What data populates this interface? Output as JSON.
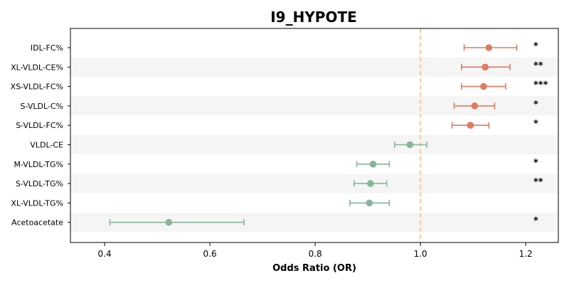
{
  "chart_data": {
    "type": "forest",
    "title": "I9_HYPOTE",
    "xlabel": "Odds Ratio (OR)",
    "ylabel": "",
    "xlim": [
      0.335,
      1.262
    ],
    "xticks": [
      0.4,
      0.6,
      0.8,
      1.0,
      1.2
    ],
    "xtick_labels": [
      "0.4",
      "0.6",
      "0.8",
      "1.0",
      "1.2"
    ],
    "reference_line": 1.0,
    "grid": false,
    "colors": {
      "positive": "#e07b5f",
      "negative": "#86b49b",
      "reference": "#f5c07a",
      "stripe": "#f5f5f5"
    },
    "rows": [
      {
        "label": "IDL-FC%",
        "or": 1.13,
        "lower": 1.083,
        "upper": 1.183,
        "significance": "*"
      },
      {
        "label": "XL-VLDL-CE%",
        "or": 1.123,
        "lower": 1.078,
        "upper": 1.17,
        "significance": "**"
      },
      {
        "label": "XS-VLDL-FC%",
        "or": 1.12,
        "lower": 1.078,
        "upper": 1.162,
        "significance": "***"
      },
      {
        "label": "S-VLDL-C%",
        "or": 1.103,
        "lower": 1.064,
        "upper": 1.141,
        "significance": "*"
      },
      {
        "label": "S-VLDL-FC%",
        "or": 1.095,
        "lower": 1.06,
        "upper": 1.13,
        "significance": "*"
      },
      {
        "label": "VLDL-CE",
        "or": 0.98,
        "lower": 0.951,
        "upper": 1.012,
        "significance": ""
      },
      {
        "label": "M-VLDL-TG%",
        "or": 0.91,
        "lower": 0.879,
        "upper": 0.941,
        "significance": "*"
      },
      {
        "label": "S-VLDL-TG%",
        "or": 0.905,
        "lower": 0.874,
        "upper": 0.936,
        "significance": "**"
      },
      {
        "label": "XL-VLDL-TG%",
        "or": 0.903,
        "lower": 0.866,
        "upper": 0.941,
        "significance": ""
      },
      {
        "label": "Acetoacetate",
        "or": 0.522,
        "lower": 0.41,
        "upper": 0.665,
        "significance": "*"
      }
    ]
  }
}
